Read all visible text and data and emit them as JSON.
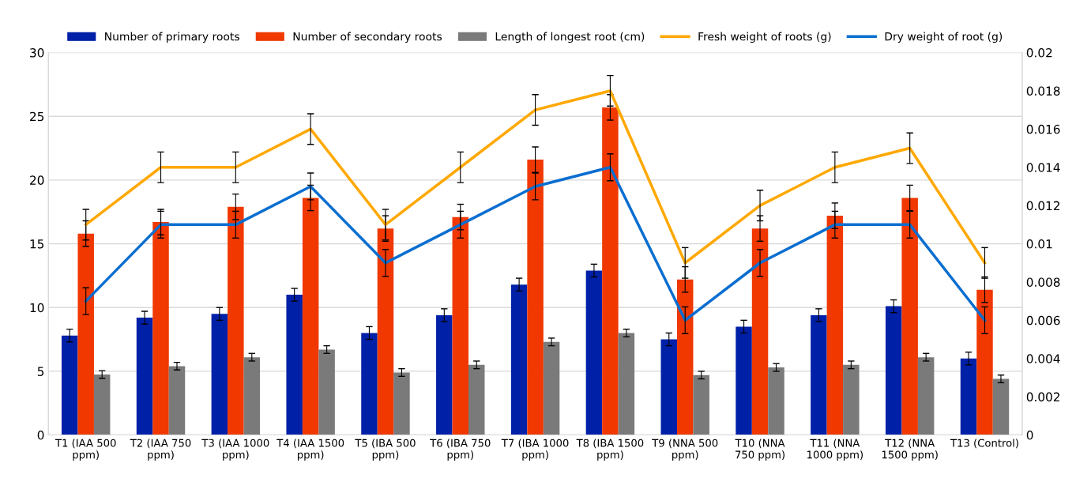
{
  "chart_data": {
    "type": "bar",
    "categories": [
      "T1 (IAA 500\nppm)",
      "T2 (IAA 750\nppm)",
      "T3 (IAA 1000\nppm)",
      "T4 (IAA 1500\nppm)",
      "T5 (IBA 500\nppm)",
      "T6 (IBA 750\nppm)",
      "T7 (IBA 1000\nppm)",
      "T8 (IBA 1500\nppm)",
      "T9 (NNA 500\nppm)",
      "T10 (NNA\n750 ppm)",
      "T11 (NNA\n1000 ppm)",
      "T12 (NNA\n1500 ppm)",
      "T13 (Control)"
    ],
    "series": [
      {
        "name": "Number of primary roots",
        "color": "#0020a8",
        "values": [
          7.8,
          9.2,
          9.5,
          11.0,
          8.0,
          9.4,
          11.8,
          12.9,
          7.5,
          8.5,
          9.4,
          10.1,
          6.0
        ],
        "errors": [
          0.5,
          0.5,
          0.5,
          0.5,
          0.5,
          0.5,
          0.5,
          0.5,
          0.5,
          0.5,
          0.5,
          0.5,
          0.5
        ]
      },
      {
        "name": "Number of secondary roots",
        "color": "#f03800",
        "values": [
          15.8,
          16.7,
          17.9,
          18.6,
          16.2,
          17.1,
          21.6,
          25.7,
          12.2,
          16.2,
          17.2,
          18.6,
          11.4
        ],
        "errors": [
          1.0,
          1.0,
          1.0,
          1.0,
          1.0,
          1.0,
          1.0,
          1.0,
          1.0,
          1.0,
          1.0,
          1.0,
          1.0
        ]
      },
      {
        "name": "Length of longest root (cm)",
        "color": "#7a7a7a",
        "values": [
          4.75,
          5.4,
          6.1,
          6.7,
          4.9,
          5.5,
          7.3,
          8.0,
          4.7,
          5.3,
          5.5,
          6.1,
          4.4
        ],
        "errors": [
          0.3,
          0.3,
          0.3,
          0.3,
          0.3,
          0.3,
          0.3,
          0.3,
          0.3,
          0.3,
          0.3,
          0.3,
          0.3
        ]
      },
      {
        "name": "Fresh weight of roots (g)",
        "type": "line",
        "axis": "y2",
        "color": "#ffa800",
        "values": [
          0.011,
          0.014,
          0.014,
          0.016,
          0.011,
          0.014,
          0.017,
          0.018,
          0.009,
          0.012,
          0.014,
          0.015,
          0.009
        ],
        "errors": [
          0.0008,
          0.0008,
          0.0008,
          0.0008,
          0.0008,
          0.0008,
          0.0008,
          0.0008,
          0.0008,
          0.0008,
          0.0008,
          0.0008,
          0.0008
        ]
      },
      {
        "name": "Dry weight of root (g)",
        "type": "line",
        "axis": "y2",
        "color": "#0a6ed0",
        "values": [
          0.007,
          0.011,
          0.011,
          0.013,
          0.009,
          0.011,
          0.013,
          0.014,
          0.006,
          0.009,
          0.011,
          0.011,
          0.006
        ],
        "errors": [
          0.0007,
          0.0007,
          0.0007,
          0.0007,
          0.0007,
          0.0007,
          0.0007,
          0.0007,
          0.0007,
          0.0007,
          0.0007,
          0.0007,
          0.0007
        ]
      }
    ],
    "ylim": [
      0,
      30
    ],
    "yticks": [
      0,
      5,
      10,
      15,
      20,
      25,
      30
    ],
    "y2lim": [
      0,
      0.02
    ],
    "y2ticks": [
      0,
      0.002,
      0.004,
      0.006,
      0.008,
      0.01,
      0.012,
      0.014,
      0.016,
      0.018,
      0.02
    ],
    "grid": "y",
    "legend": "top"
  }
}
